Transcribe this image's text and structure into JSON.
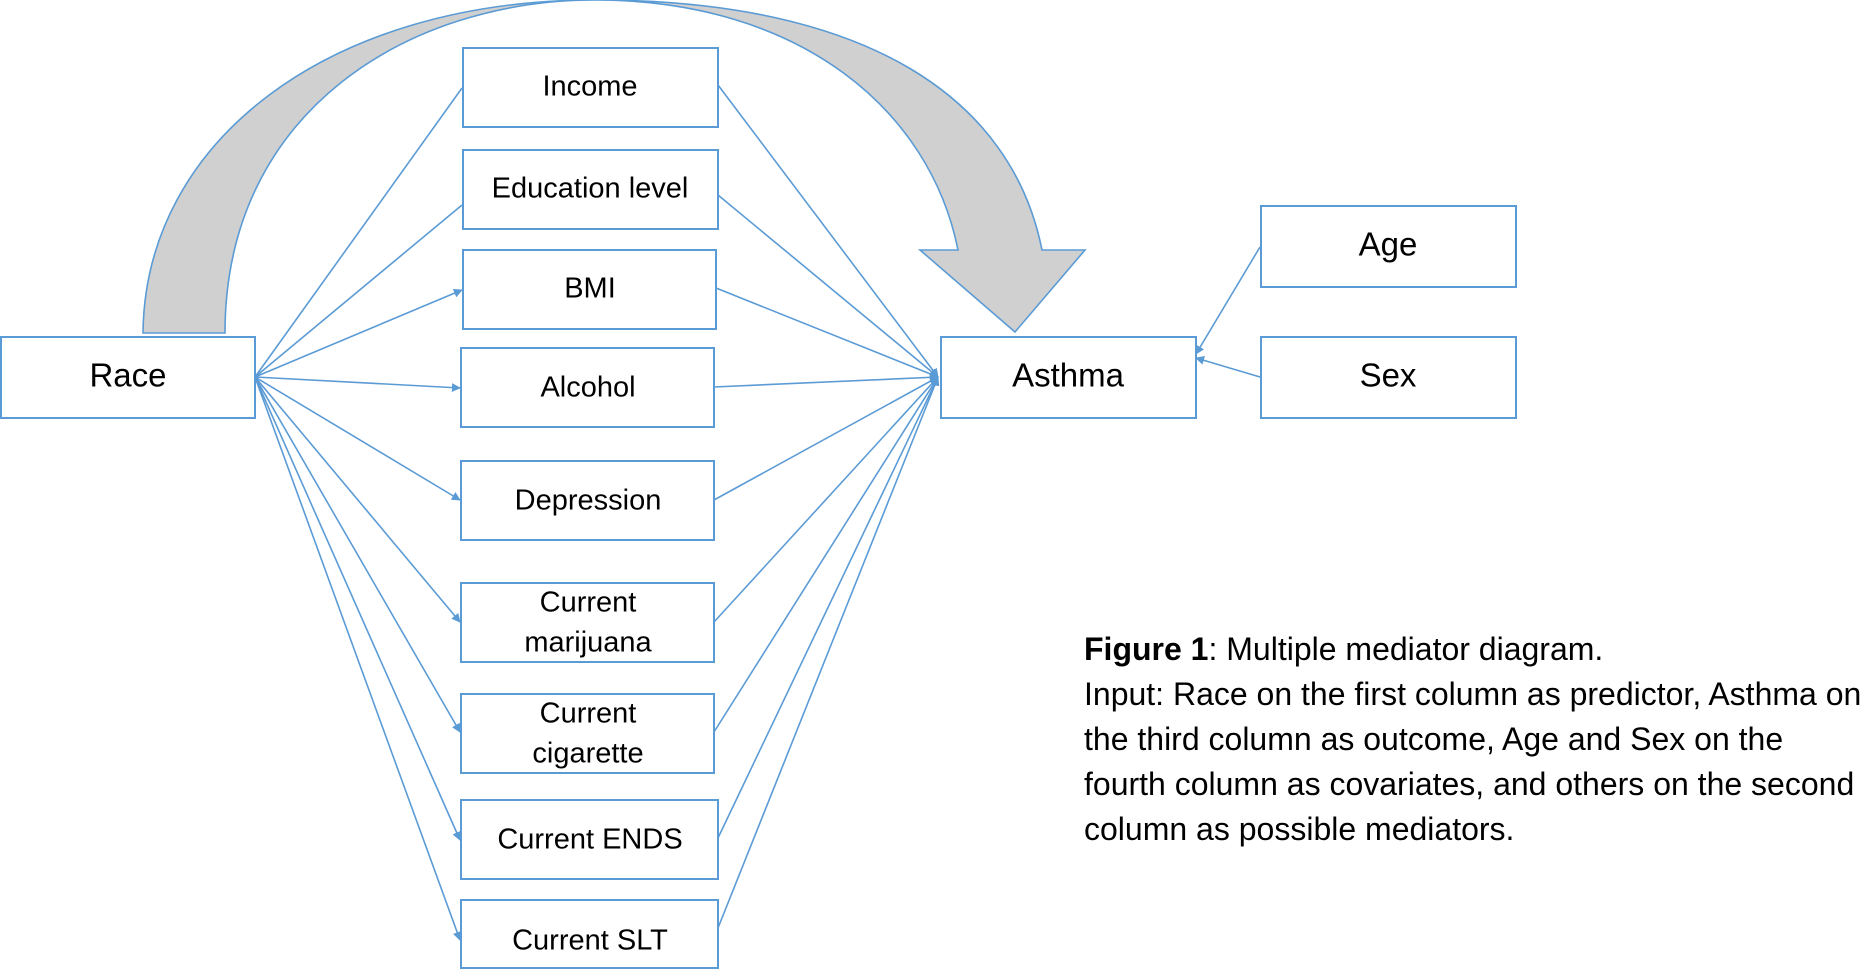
{
  "nodes": {
    "race": "Race",
    "income": "Income",
    "education": "Education level",
    "bmi": "BMI",
    "alcohol": "Alcohol",
    "depression": "Depression",
    "marijuana_1": "Current",
    "marijuana_2": "marijuana",
    "cigarette_1": "Current",
    "cigarette_2": "cigarette",
    "ends": "Current ENDS",
    "slt": "Current SLT",
    "asthma": "Asthma",
    "age": "Age",
    "sex": "Sex"
  },
  "caption": {
    "label": "Figure 1",
    "title": ": Multiple mediator diagram.",
    "body": "Input: Race on the first column as predictor, Asthma on the third column as outcome, Age and Sex on the fourth column as covariates, and others on the second column as possible mediators."
  },
  "colors": {
    "stroke": "#5b9bd5",
    "big_arrow_fill": "#d0d0d0"
  }
}
